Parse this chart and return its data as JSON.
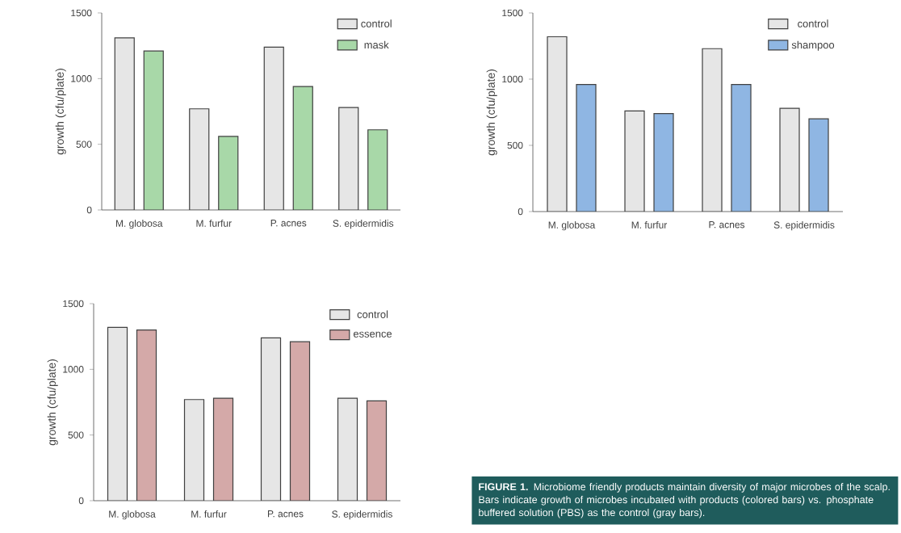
{
  "chart_data": [
    {
      "type": "bar",
      "categories": [
        "M. globosa",
        "M. furfur",
        "P. acnes",
        "S. epidermidis"
      ],
      "ylabel": "growth (cfu/plate)",
      "ylim": [
        0,
        1500
      ],
      "yticks": [
        0,
        500,
        1000,
        1500
      ],
      "legend": "top right",
      "grid": false,
      "series": [
        {
          "name": "control",
          "color": "#e6e6e6",
          "values": [
            1310,
            770,
            1240,
            780
          ]
        },
        {
          "name": "mask",
          "color": "#a8d8a8",
          "values": [
            1210,
            560,
            940,
            610
          ]
        }
      ]
    },
    {
      "type": "bar",
      "categories": [
        "M. globosa",
        "M. furfur",
        "P. acnes",
        "S. epidermidis"
      ],
      "ylabel": "growth (cfu/plate)",
      "ylim": [
        0,
        1500
      ],
      "yticks": [
        0,
        500,
        1000,
        1500
      ],
      "legend": "top right",
      "grid": false,
      "series": [
        {
          "name": "control",
          "color": "#e6e6e6",
          "values": [
            1320,
            760,
            1230,
            780
          ]
        },
        {
          "name": "shampoo",
          "color": "#8fb6e3",
          "values": [
            960,
            740,
            960,
            700
          ]
        }
      ]
    },
    {
      "type": "bar",
      "categories": [
        "M. globosa",
        "M. furfur",
        "P. acnes",
        "S. epidermidis"
      ],
      "ylabel": "growth (cfu/plate)",
      "ylim": [
        0,
        1500
      ],
      "yticks": [
        0,
        500,
        1000,
        1500
      ],
      "legend": "top right",
      "grid": false,
      "series": [
        {
          "name": "control",
          "color": "#e6e6e6",
          "values": [
            1320,
            770,
            1240,
            780
          ]
        },
        {
          "name": "essence",
          "color": "#d4a9a8",
          "values": [
            1300,
            780,
            1210,
            760
          ]
        }
      ]
    },
    {
      "type": "other",
      "color": "#1f5c5c",
      "annotations": [
        "**FIGURE 1.** Microbiome friendly products maintain diversity of major microbes of the scalp. Bars indicate growth of microbes incubated with products (colored bars) vs. phosphate buffered solution (PBS) as the control (gray bars)."
      ]
    }
  ]
}
